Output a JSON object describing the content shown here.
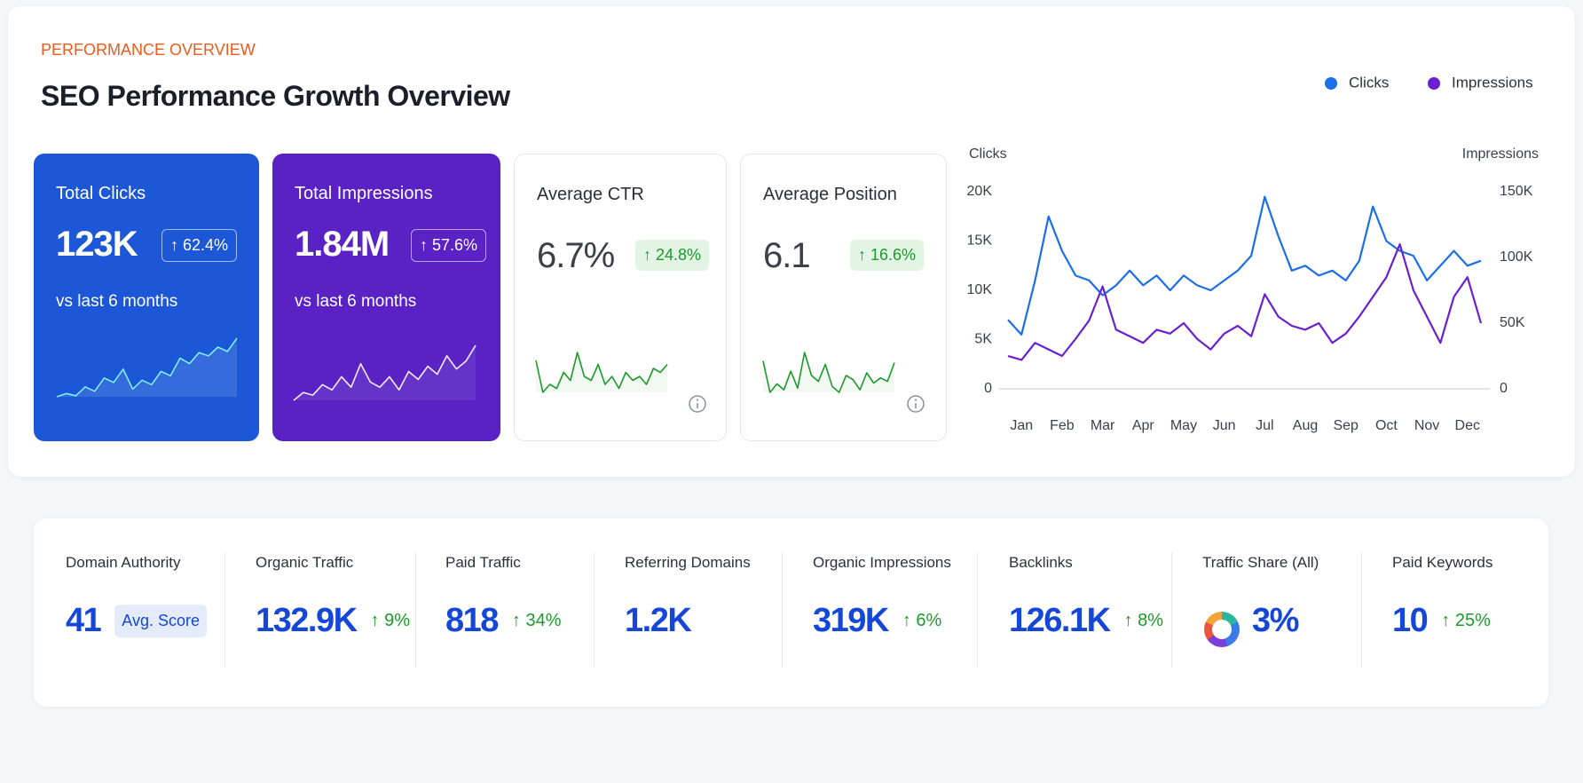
{
  "header": {
    "eyebrow": "PERFORMANCE OVERVIEW",
    "title": "SEO Performance Growth Overview"
  },
  "cards": [
    {
      "label": "Total Clicks",
      "value": "123K",
      "change": "↑ 62.4%",
      "note": "vs last 6 months",
      "sparkline": [
        5,
        8,
        6,
        14,
        10,
        22,
        18,
        30,
        12,
        20,
        16,
        28,
        24,
        40,
        35,
        45,
        42,
        50,
        46,
        58
      ]
    },
    {
      "label": "Total Impressions",
      "value": "1.84M",
      "change": "↑ 57.6%",
      "note": "vs last 6 months",
      "sparkline": [
        4,
        10,
        8,
        16,
        12,
        22,
        14,
        32,
        18,
        14,
        22,
        12,
        26,
        20,
        30,
        24,
        38,
        28,
        34,
        46
      ]
    },
    {
      "label": "Average CTR",
      "value": "6.7%",
      "change": "↑ 24.8%",
      "sparkline": [
        60,
        20,
        30,
        25,
        45,
        35,
        70,
        40,
        35,
        55,
        30,
        40,
        25,
        45,
        35,
        40,
        30,
        50,
        45,
        55
      ]
    },
    {
      "label": "Average Position",
      "value": "6.1",
      "change": "↑ 16.6%",
      "sparkline": [
        62,
        25,
        35,
        28,
        50,
        30,
        72,
        45,
        38,
        58,
        32,
        25,
        45,
        40,
        28,
        48,
        36,
        42,
        38,
        60
      ]
    }
  ],
  "chart_data": {
    "type": "line",
    "y_label": "Clicks",
    "y2_label": "Impressions",
    "categories": [
      null,
      "Jan",
      null,
      null,
      "Feb",
      null,
      null,
      "Mar",
      null,
      null,
      "Apr",
      null,
      null,
      "May",
      null,
      null,
      "Jun",
      null,
      null,
      "Jul",
      null,
      null,
      "Aug",
      null,
      null,
      "Sep",
      null,
      null,
      "Oct",
      null,
      null,
      "Nov",
      null,
      null,
      "Dec",
      null
    ],
    "series": [
      {
        "name": "Clicks",
        "color": "#1a6ee8",
        "values": [
          7000,
          5500,
          11000,
          17500,
          14000,
          11500,
          11000,
          9500,
          10500,
          12000,
          10500,
          11500,
          10000,
          11500,
          10500,
          10000,
          11000,
          12000,
          13500,
          19500,
          15500,
          12000,
          12500,
          11500,
          12000,
          11000,
          13000,
          18500,
          15000,
          14000,
          13500,
          11000,
          12500,
          14000,
          12500,
          13000
        ]
      },
      {
        "name": "Impressions",
        "color": "#6a1fd0",
        "axis": "y2",
        "values": [
          25000,
          22000,
          35000,
          30000,
          25000,
          38000,
          52000,
          78000,
          45000,
          40000,
          35000,
          45000,
          42000,
          50000,
          38000,
          30000,
          42000,
          48000,
          40000,
          72000,
          55000,
          48000,
          45000,
          50000,
          35000,
          42000,
          55000,
          70000,
          85000,
          110000,
          75000,
          55000,
          35000,
          70000,
          85000,
          50000
        ]
      }
    ],
    "ylim": [
      0,
      20000
    ],
    "yticks": [
      0,
      {
        "value": 5000,
        "label": "5K"
      },
      {
        "value": 10000,
        "label": "10K"
      },
      {
        "value": 15000,
        "label": "15K"
      },
      {
        "value": 20000,
        "label": "20K"
      }
    ],
    "y2lim": [
      0,
      150000
    ],
    "y2ticks": [
      0,
      {
        "value": 50000,
        "label": "50K"
      },
      {
        "value": 100000,
        "label": "100K"
      },
      {
        "value": 150000,
        "label": "150K"
      }
    ],
    "grid": false,
    "legend": "top-right"
  },
  "metrics": [
    {
      "label": "Domain Authority",
      "value": "41",
      "badge": "Avg. Score"
    },
    {
      "label": "Organic Traffic",
      "value": "132.9K",
      "change": "↑ 9%"
    },
    {
      "label": "Paid Traffic",
      "value": "818",
      "change": "↑ 34%"
    },
    {
      "label": "Referring Domains",
      "value": "1.2K"
    },
    {
      "label": "Organic Impressions",
      "value": "319K",
      "change": "↑ 6%"
    },
    {
      "label": "Backlinks",
      "value": "126.1K",
      "change": "↑ 8%"
    },
    {
      "label": "Traffic Share (All)",
      "value": "3%"
    },
    {
      "label": "Paid Keywords",
      "value": "10",
      "change": "↑ 25%"
    }
  ]
}
